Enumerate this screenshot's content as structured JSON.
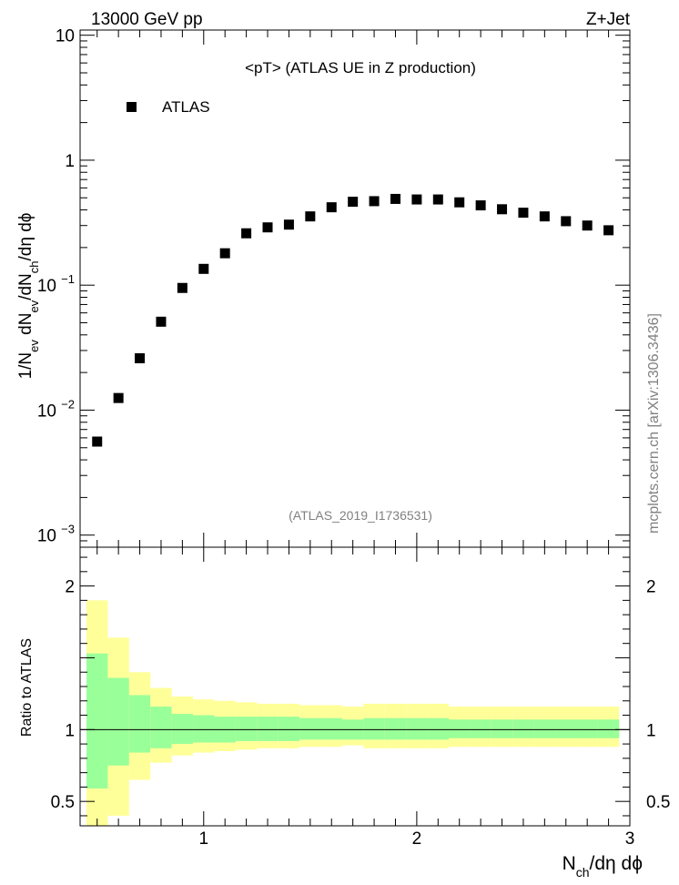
{
  "header": {
    "left": "13000 GeV pp",
    "right": "Z+Jet"
  },
  "plot_title": "<pT> (ATLAS UE in Z production)",
  "legend_label": "ATLAS",
  "analysis_id": "(ATLAS_2019_I1736531)",
  "side_text": "mcplots.cern.ch [arXiv:1306.3436]",
  "ylabel_main": {
    "base": "1/N",
    "sub1": "ev",
    "mid": " dN",
    "sub2": "ev",
    "mid2": "/dN",
    "sub3": "ch",
    "tail": "/dη dϕ"
  },
  "ylabel_ratio": "Ratio to ATLAS",
  "xlabel": {
    "base": "N",
    "sub": "ch",
    "tail": "/dη dϕ"
  },
  "colors": {
    "marker": "#000000",
    "band_outer": "#ffff99",
    "band_inner": "#99ff99",
    "analysis_text": "#808080"
  },
  "chart_data": [
    {
      "type": "scatter",
      "yscale": "log",
      "xlim": [
        0.42,
        3.0
      ],
      "ylim": [
        0.0008,
        11
      ],
      "yticks": [
        {
          "value": 10,
          "label": "10"
        },
        {
          "value": 1,
          "label": "1"
        },
        {
          "value": 0.1,
          "label": "10",
          "sup": "−1"
        },
        {
          "value": 0.01,
          "label": "10",
          "sup": "−2"
        },
        {
          "value": 0.001,
          "label": "10",
          "sup": "−3"
        }
      ],
      "series": [
        {
          "name": "ATLAS",
          "x": [
            0.5,
            0.6,
            0.7,
            0.8,
            0.9,
            1.0,
            1.1,
            1.2,
            1.3,
            1.4,
            1.5,
            1.6,
            1.7,
            1.8,
            1.9,
            2.0,
            2.1,
            2.2,
            2.3,
            2.4,
            2.5,
            2.6,
            2.7,
            2.8,
            2.9
          ],
          "y": [
            0.0056,
            0.0125,
            0.026,
            0.051,
            0.095,
            0.135,
            0.18,
            0.26,
            0.29,
            0.305,
            0.355,
            0.42,
            0.465,
            0.47,
            0.49,
            0.485,
            0.485,
            0.46,
            0.435,
            0.405,
            0.38,
            0.355,
            0.325,
            0.3,
            0.275
          ]
        }
      ]
    },
    {
      "type": "area",
      "xlim": [
        0.42,
        3.0
      ],
      "ylim": [
        0.33,
        2.27
      ],
      "xticks": [
        1,
        2,
        3
      ],
      "xticklabels": [
        "1",
        "2",
        "3"
      ],
      "yticks": [
        0.5,
        1,
        2
      ],
      "yticklabels": [
        "0.5",
        "1",
        "2"
      ],
      "reference_line": 1,
      "bins": [
        {
          "x0": 0.45,
          "x1": 0.55,
          "inner": [
            0.59,
            1.53
          ],
          "outer": [
            0.33,
            1.9
          ]
        },
        {
          "x0": 0.55,
          "x1": 0.65,
          "inner": [
            0.75,
            1.36
          ],
          "outer": [
            0.4,
            1.64
          ]
        },
        {
          "x0": 0.65,
          "x1": 0.75,
          "inner": [
            0.84,
            1.24
          ],
          "outer": [
            0.65,
            1.4
          ]
        },
        {
          "x0": 0.75,
          "x1": 0.85,
          "inner": [
            0.87,
            1.16
          ],
          "outer": [
            0.77,
            1.29
          ]
        },
        {
          "x0": 0.85,
          "x1": 0.95,
          "inner": [
            0.9,
            1.11
          ],
          "outer": [
            0.82,
            1.23
          ]
        },
        {
          "x0": 0.95,
          "x1": 1.05,
          "inner": [
            0.91,
            1.1
          ],
          "outer": [
            0.84,
            1.21
          ]
        },
        {
          "x0": 1.05,
          "x1": 1.15,
          "inner": [
            0.91,
            1.09
          ],
          "outer": [
            0.85,
            1.2
          ]
        },
        {
          "x0": 1.15,
          "x1": 1.25,
          "inner": [
            0.92,
            1.09
          ],
          "outer": [
            0.86,
            1.19
          ]
        },
        {
          "x0": 1.25,
          "x1": 1.35,
          "inner": [
            0.92,
            1.09
          ],
          "outer": [
            0.87,
            1.18
          ]
        },
        {
          "x0": 1.35,
          "x1": 1.45,
          "inner": [
            0.92,
            1.09
          ],
          "outer": [
            0.87,
            1.18
          ]
        },
        {
          "x0": 1.45,
          "x1": 1.55,
          "inner": [
            0.93,
            1.08
          ],
          "outer": [
            0.88,
            1.17
          ]
        },
        {
          "x0": 1.55,
          "x1": 1.65,
          "inner": [
            0.93,
            1.08
          ],
          "outer": [
            0.88,
            1.17
          ]
        },
        {
          "x0": 1.65,
          "x1": 1.75,
          "inner": [
            0.93,
            1.07
          ],
          "outer": [
            0.89,
            1.16
          ]
        },
        {
          "x0": 1.75,
          "x1": 1.85,
          "inner": [
            0.93,
            1.08
          ],
          "outer": [
            0.87,
            1.18
          ]
        },
        {
          "x0": 1.85,
          "x1": 1.95,
          "inner": [
            0.93,
            1.08
          ],
          "outer": [
            0.87,
            1.18
          ]
        },
        {
          "x0": 1.95,
          "x1": 2.05,
          "inner": [
            0.93,
            1.08
          ],
          "outer": [
            0.87,
            1.18
          ]
        },
        {
          "x0": 2.05,
          "x1": 2.15,
          "inner": [
            0.93,
            1.08
          ],
          "outer": [
            0.87,
            1.18
          ]
        },
        {
          "x0": 2.15,
          "x1": 2.25,
          "inner": [
            0.94,
            1.07
          ],
          "outer": [
            0.88,
            1.16
          ]
        },
        {
          "x0": 2.25,
          "x1": 2.35,
          "inner": [
            0.94,
            1.07
          ],
          "outer": [
            0.88,
            1.16
          ]
        },
        {
          "x0": 2.35,
          "x1": 2.45,
          "inner": [
            0.94,
            1.07
          ],
          "outer": [
            0.88,
            1.16
          ]
        },
        {
          "x0": 2.45,
          "x1": 2.55,
          "inner": [
            0.94,
            1.07
          ],
          "outer": [
            0.88,
            1.16
          ]
        },
        {
          "x0": 2.55,
          "x1": 2.65,
          "inner": [
            0.94,
            1.07
          ],
          "outer": [
            0.88,
            1.16
          ]
        },
        {
          "x0": 2.65,
          "x1": 2.75,
          "inner": [
            0.94,
            1.07
          ],
          "outer": [
            0.88,
            1.16
          ]
        },
        {
          "x0": 2.75,
          "x1": 2.85,
          "inner": [
            0.94,
            1.07
          ],
          "outer": [
            0.88,
            1.16
          ]
        },
        {
          "x0": 2.85,
          "x1": 2.95,
          "inner": [
            0.94,
            1.07
          ],
          "outer": [
            0.88,
            1.16
          ]
        }
      ]
    }
  ]
}
